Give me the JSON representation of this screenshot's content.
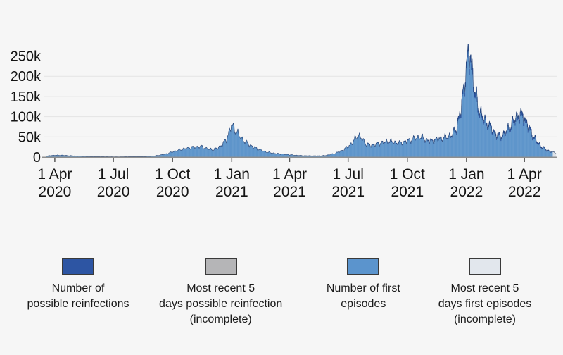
{
  "chart_data": {
    "type": "area",
    "description": "Daily COVID-19 first episodes and possible reinfections over time, stacked area/bar chart",
    "x_start_date": "2020-03-19",
    "week_step_days": 7,
    "units": "people per day (values in thousands)",
    "ylim": [
      0,
      280000
    ],
    "grid": "horizontal",
    "y_ticks": [
      {
        "value_k": 0,
        "label": "0"
      },
      {
        "value_k": 50,
        "label": "50k"
      },
      {
        "value_k": 100,
        "label": "100k"
      },
      {
        "value_k": 150,
        "label": "150k"
      },
      {
        "value_k": 200,
        "label": "200k"
      },
      {
        "value_k": 250,
        "label": "250k"
      }
    ],
    "x_ticks": [
      {
        "day": 13,
        "line1": "1 Apr",
        "line2": "2020"
      },
      {
        "day": 104,
        "line1": "1 Jul",
        "line2": "2020"
      },
      {
        "day": 196,
        "line1": "1 Oct",
        "line2": "2020"
      },
      {
        "day": 288,
        "line1": "1 Jan",
        "line2": "2021"
      },
      {
        "day": 378,
        "line1": "1 Apr",
        "line2": "2021"
      },
      {
        "day": 469,
        "line1": "1 Jul",
        "line2": "2021"
      },
      {
        "day": 561,
        "line1": "1 Oct",
        "line2": "2021"
      },
      {
        "day": 653,
        "line1": "1 Jan",
        "line2": "2022"
      },
      {
        "day": 743,
        "line1": "1 Apr",
        "line2": "2022"
      }
    ],
    "incomplete_last_days": 5,
    "colors": {
      "first": "#5e95cb",
      "reinf": "#28509c",
      "first_incomplete": "#dde3ea",
      "reinf_incomplete": "#b4b4b6",
      "outline": "#1d3c6f",
      "grid": "#e3e3e3",
      "axis": "#8e8e8e",
      "tick": "#5a5a5a",
      "text": "#141414"
    },
    "series": [
      {
        "name": "Number of first episodes",
        "sampling": "weekly anchors of daily values, thousands",
        "values_k": [
          2.5,
          4,
          4.5,
          4.5,
          4,
          3.5,
          3,
          2.5,
          2,
          1.8,
          1.5,
          1.2,
          1.1,
          1.0,
          0.9,
          0.8,
          0.8,
          0.9,
          1.0,
          1.2,
          1.3,
          1.4,
          1.6,
          2.0,
          3.0,
          4.5,
          6.5,
          9,
          13,
          16,
          19,
          21,
          23,
          25,
          26,
          23,
          19,
          18,
          22,
          30,
          45,
          78,
          65,
          48,
          38,
          30,
          24,
          19,
          15,
          12,
          10,
          8.5,
          7.5,
          6.5,
          5.5,
          4.5,
          4,
          3.5,
          3.2,
          3,
          3,
          3.2,
          4,
          6,
          9,
          13,
          18,
          26,
          36,
          54,
          44,
          30,
          28,
          30,
          33,
          35,
          38,
          36,
          33,
          35,
          38,
          42,
          45,
          48,
          42,
          38,
          40,
          43,
          45,
          48,
          52,
          68,
          110,
          200,
          248,
          150,
          110,
          88,
          75,
          62,
          50,
          48,
          58,
          72,
          88,
          98,
          90,
          68,
          48,
          32,
          22,
          16,
          12,
          10
        ]
      },
      {
        "name": "Number of possible reinfections",
        "sampling": "weekly anchors of daily values, thousands",
        "values_k": [
          0.05,
          0.05,
          0.05,
          0.05,
          0.05,
          0.05,
          0.05,
          0.05,
          0.05,
          0.05,
          0.05,
          0.05,
          0.05,
          0.05,
          0.05,
          0.05,
          0.05,
          0.05,
          0.05,
          0.05,
          0.05,
          0.05,
          0.05,
          0.1,
          0.2,
          0.2,
          0.25,
          0.3,
          0.3,
          0.35,
          0.35,
          0.4,
          0.4,
          0.4,
          0.4,
          0.4,
          0.4,
          0.6,
          0.7,
          0.8,
          1.0,
          1.0,
          0.9,
          0.8,
          0.7,
          0.6,
          0.5,
          0.4,
          0.3,
          0.25,
          0.2,
          0.2,
          0.15,
          0.15,
          0.15,
          0.1,
          0.1,
          0.1,
          0.1,
          0.1,
          0.1,
          0.1,
          0.15,
          0.2,
          0.3,
          0.4,
          0.6,
          0.9,
          1.1,
          1.3,
          1.2,
          1.1,
          1.2,
          1.3,
          1.4,
          1.5,
          1.6,
          1.5,
          1.5,
          1.6,
          1.8,
          2.0,
          2.1,
          2.2,
          2.0,
          1.9,
          2.0,
          2.2,
          2.4,
          2.6,
          3.5,
          6,
          10,
          15,
          18,
          13,
          10,
          8,
          7,
          6,
          5,
          5,
          6,
          7.5,
          9,
          10,
          9.5,
          7.5,
          5.5,
          4,
          3,
          2.2,
          1.8,
          1.5
        ]
      }
    ]
  },
  "legend": {
    "items": [
      {
        "label": "Number of\npossible reinfections",
        "color": "#2d55a3"
      },
      {
        "label": "Most recent 5\ndays possible reinfection\n(incomplete)",
        "color": "#b5b5b7"
      },
      {
        "label": "Number of first\nepisodes",
        "color": "#5b94cd"
      },
      {
        "label": "Most recent 5\ndays first episodes\n(incomplete)",
        "color": "#e2e7ed"
      }
    ]
  }
}
